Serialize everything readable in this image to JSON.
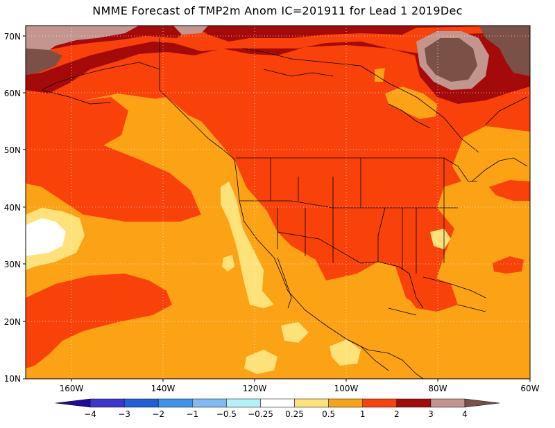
{
  "title": "NMME Forecast of TMP2m Anom IC=201911 for Lead 1 2019Dec",
  "lat_labels": [
    "70N",
    "60N",
    "50N",
    "40N",
    "30N",
    "20N",
    "10N"
  ],
  "lon_labels": [
    "160W",
    "140W",
    "120W",
    "100W",
    "80W",
    "60W"
  ],
  "colorbar": {
    "ticks": [
      "−4",
      "−3",
      "−2",
      "−1",
      "−0.5",
      "−0.25",
      "0.25",
      "0.5",
      "1",
      "2",
      "3",
      "4"
    ],
    "colors": [
      "#1e0aa0",
      "#3b36d0",
      "#1f5fd8",
      "#3c93ee",
      "#7fbaf2",
      "#b4f0f8",
      "#ffffff",
      "#fde27a",
      "#fba314",
      "#f8420a",
      "#a50a0a",
      "#c2958e",
      "#7b5046"
    ]
  },
  "chart_data": {
    "type": "map",
    "title": "NMME Forecast of TMP2m Anom IC=201911 for Lead 1 2019Dec",
    "variable": "TMP2m Anom",
    "region": {
      "lon_range": [
        -170,
        -60
      ],
      "lat_range": [
        10,
        72
      ]
    },
    "contour_levels": [
      -4,
      -3,
      -2,
      -1,
      -0.5,
      -0.25,
      0.25,
      0.5,
      1,
      2,
      3,
      4
    ],
    "grid": true
  }
}
